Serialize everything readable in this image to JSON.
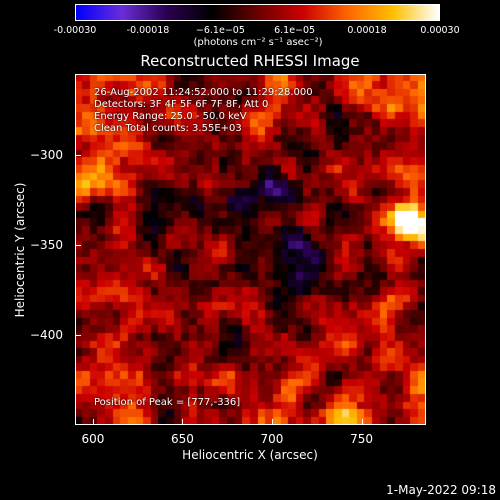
{
  "colorbar": {
    "colors": [
      "#0000ff",
      "#6b2dd9",
      "#2a0050",
      "#000000",
      "#6a0000",
      "#cc0000",
      "#ff6600",
      "#ffc000",
      "#ffffff"
    ],
    "ticks": [
      "-0.00030",
      "-0.00018",
      "−6.1e−05",
      "6.1e−05",
      "0.00018",
      "0.00030"
    ],
    "tick_values": [
      -0.0003,
      -0.00018,
      -6.1e-05,
      6.1e-05,
      0.00018,
      0.0003
    ],
    "range": [
      -0.0003,
      0.0003
    ],
    "unit_label": "(photons cm⁻² s⁻¹ asec⁻²)"
  },
  "chart_data": {
    "type": "heatmap",
    "title": "Reconstructed RHESSI Image",
    "xlabel": "Heliocentric X (arcsec)",
    "ylabel": "Heliocentric Y (arcsec)",
    "xlim": [
      590,
      786
    ],
    "ylim": [
      -450,
      -255
    ],
    "xticks": [
      600,
      650,
      700,
      750
    ],
    "yticks": [
      -300,
      -350,
      -400
    ],
    "annotations": {
      "time": "26-Aug-2002 11:24:52.000 to 11:29:28.000",
      "detectors": "Detectors: 3F 4F 5F 6F 7F 8F, Att 0",
      "energy": "Energy Range: 25.0 - 50.0 keV",
      "method": "Clean      Total counts: 3.55E+03",
      "peak": "Position of Peak = [777,-336]"
    },
    "peak": [
      777,
      -336
    ]
  },
  "footer": {
    "timestamp": "1-May-2022 09:18"
  }
}
